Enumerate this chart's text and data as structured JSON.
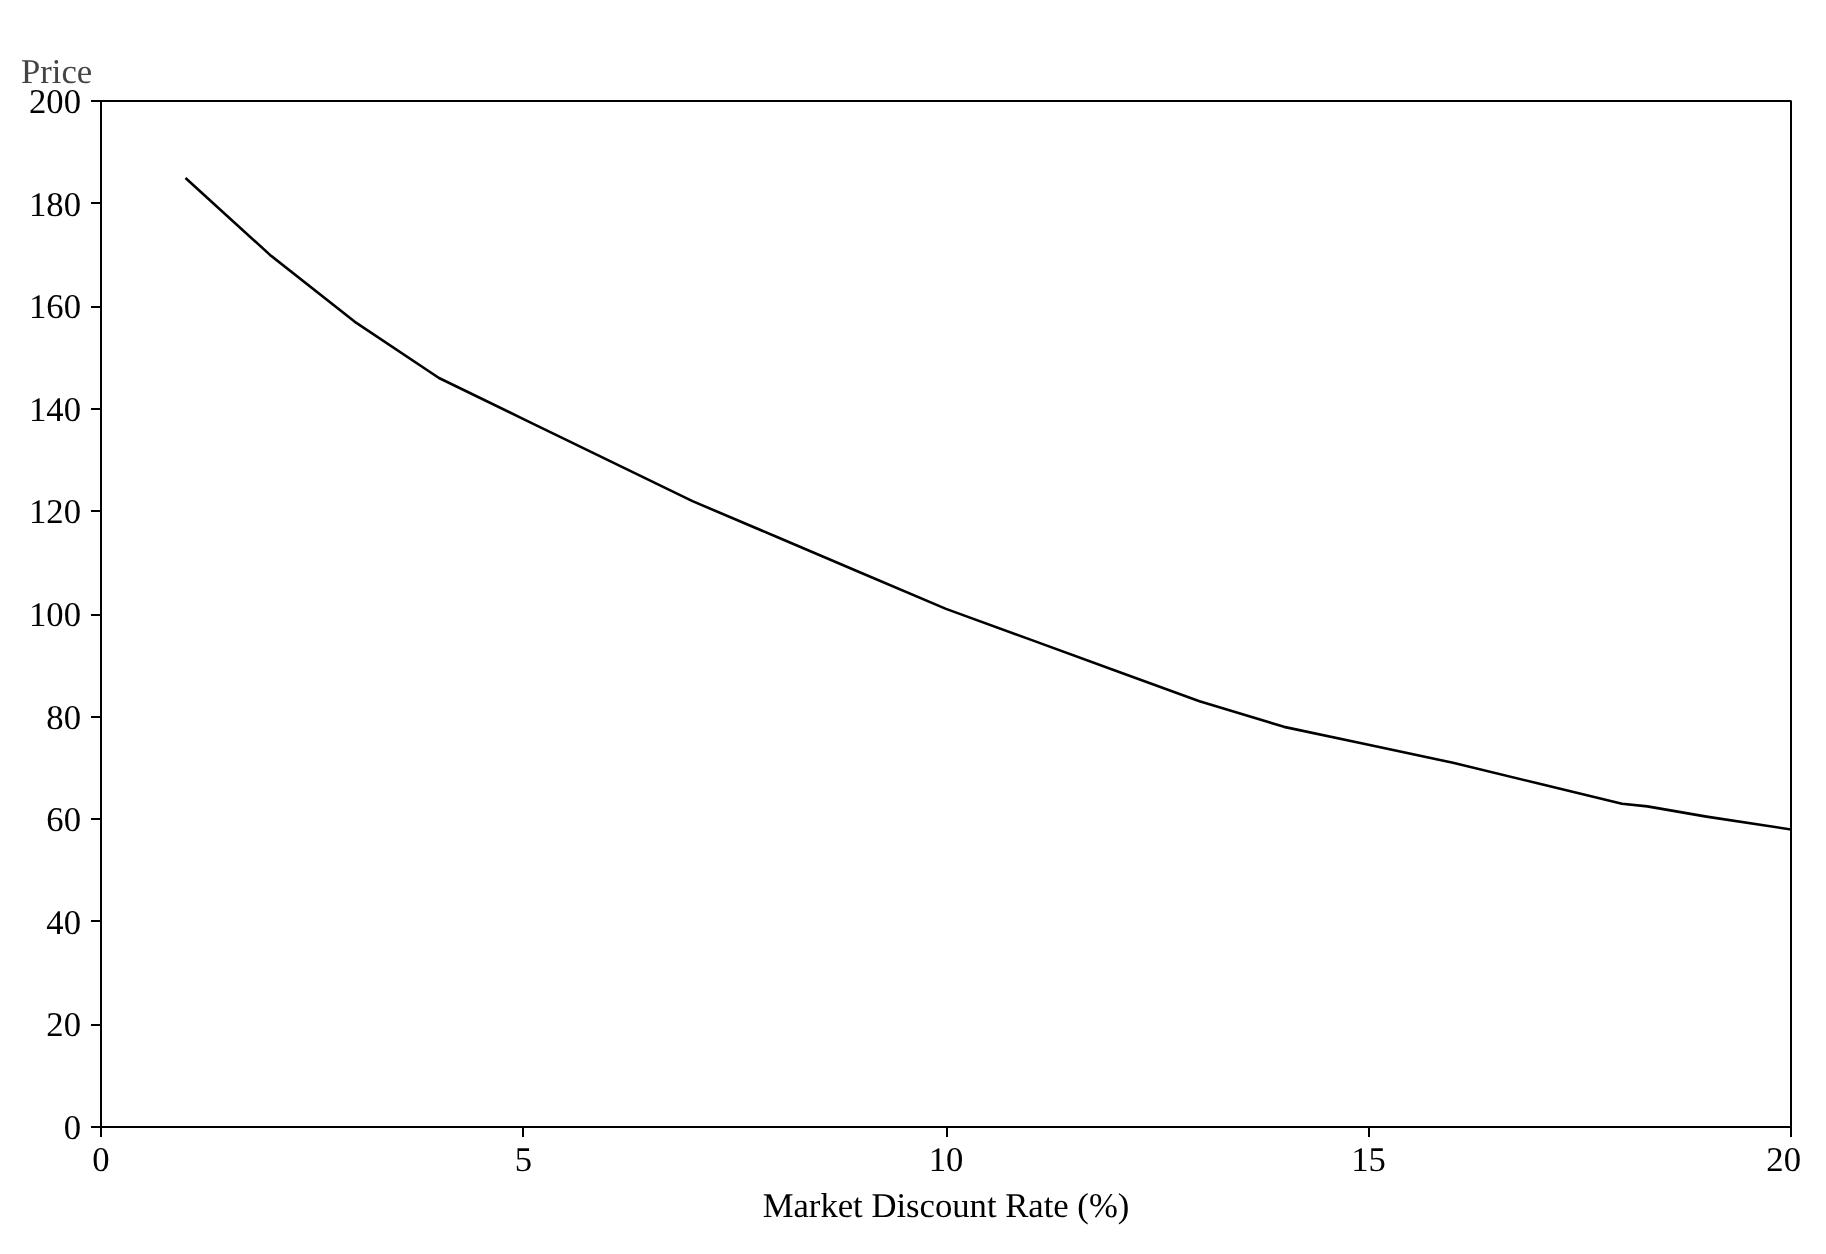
{
  "chart_data": {
    "type": "line",
    "ylabel": "Price",
    "xlabel": "Market Discount Rate (%)",
    "x": [
      1,
      2,
      3,
      4,
      5,
      6,
      7,
      8,
      9,
      10,
      11,
      12,
      13,
      14,
      15,
      16,
      17,
      18,
      18.3,
      19,
      20
    ],
    "series": [
      {
        "color": "#000000",
        "values": [
          185,
          170,
          157,
          146,
          138,
          130,
          122,
          115,
          108,
          101,
          95,
          89,
          83,
          78,
          74.5,
          71,
          67,
          63,
          62.5,
          60.5,
          58
        ]
      }
    ],
    "xlim": [
      0,
      20
    ],
    "xticks": [
      0,
      5,
      10,
      15,
      20
    ],
    "ylim": [
      0,
      200
    ],
    "yticks": [
      0,
      20,
      40,
      60,
      80,
      100,
      120,
      140,
      160,
      180,
      200
    ],
    "grid": false,
    "marker": "none",
    "line_style": "solid"
  }
}
